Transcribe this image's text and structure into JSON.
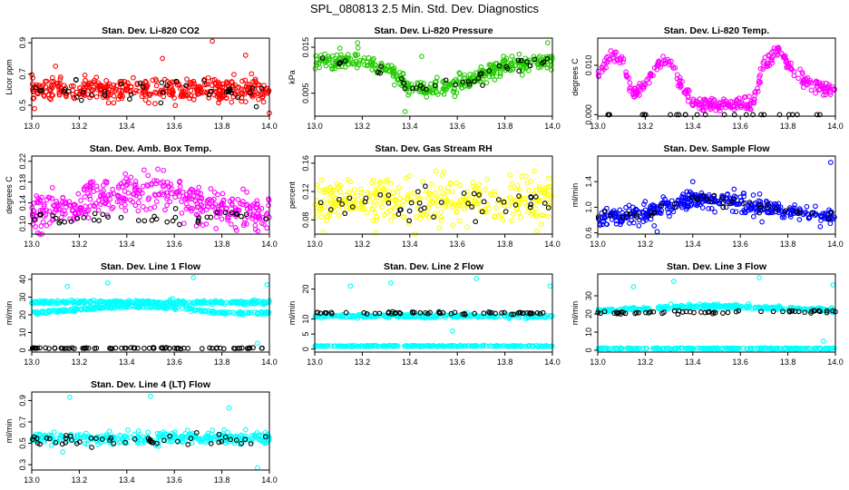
{
  "title": "SPL_080813  2.5 Min. Std. Dev. Diagnostics",
  "colors": {
    "red": "#ff0000",
    "green": "#22cc00",
    "magenta": "#ff00ff",
    "yellow": "#ffff00",
    "blue": "#0000ff",
    "cyan": "#00ffff",
    "black": "#000000"
  },
  "chart_data": [
    {
      "type": "scatter",
      "title": "Stan. Dev. Li-820 CO2",
      "ylabel": "Licor ppm",
      "xlim": [
        13.0,
        14.0
      ],
      "ylim": [
        0.43,
        0.93
      ],
      "xticks": [
        "13.0",
        "13.2",
        "13.4",
        "13.6",
        "13.8",
        "14.0"
      ],
      "yticks": [
        {
          "v": 0.5,
          "label": "0.5"
        },
        {
          "v": 0.7,
          "label": "0.7"
        },
        {
          "v": 0.9,
          "label": "0.9"
        }
      ],
      "series": [
        {
          "color": "red",
          "baseline": [
            [
              13.0,
              0.6
            ],
            [
              14.0,
              0.6
            ]
          ],
          "spread": 0.05,
          "n": 400
        },
        {
          "color": "black",
          "baseline": [
            [
              13.0,
              0.58
            ],
            [
              14.0,
              0.58
            ]
          ],
          "spread": 0.05,
          "n": 40
        }
      ],
      "outliers": [
        [
          13.76,
          0.91
        ],
        [
          13.1,
          0.75
        ],
        [
          13.9,
          0.82
        ],
        [
          13.55,
          0.8
        ],
        [
          14.0,
          0.45
        ]
      ]
    },
    {
      "type": "scatter",
      "title": "Stan. Dev. Li-820 Pressure",
      "ylabel": "kPa",
      "xlim": [
        13.0,
        14.0
      ],
      "ylim": [
        0.0,
        0.017
      ],
      "xticks": [
        "13.0",
        "13.2",
        "13.4",
        "13.6",
        "13.8",
        "14.0"
      ],
      "yticks": [
        {
          "v": 0.005,
          "label": "0.005"
        },
        {
          "v": 0.015,
          "label": "0.015"
        }
      ],
      "series": [
        {
          "color": "green",
          "baseline": [
            [
              13.0,
              0.012
            ],
            [
              13.2,
              0.012
            ],
            [
              13.3,
              0.01
            ],
            [
              13.4,
              0.006
            ],
            [
              13.5,
              0.006
            ],
            [
              13.6,
              0.007
            ],
            [
              13.7,
              0.009
            ],
            [
              13.8,
              0.011
            ],
            [
              14.0,
              0.012
            ]
          ],
          "spread": 0.0013,
          "n": 400
        },
        {
          "color": "black",
          "baseline": [
            [
              13.0,
              0.012
            ],
            [
              13.2,
              0.012
            ],
            [
              13.3,
              0.01
            ],
            [
              13.4,
              0.006
            ],
            [
              13.5,
              0.006
            ],
            [
              13.6,
              0.007
            ],
            [
              13.7,
              0.009
            ],
            [
              13.8,
              0.011
            ],
            [
              14.0,
              0.012
            ]
          ],
          "spread": 0.0012,
          "n": 40
        }
      ],
      "outliers": [
        [
          13.18,
          0.016
        ],
        [
          13.98,
          0.016
        ],
        [
          13.45,
          0.013
        ],
        [
          13.38,
          0.001
        ]
      ]
    },
    {
      "type": "scatter",
      "title": "Stan. Dev. Li-820 Temp.",
      "ylabel": "degrees C",
      "xlim": [
        13.0,
        14.0
      ],
      "ylim": [
        -0.0003,
        0.0155
      ],
      "xticks": [
        "13.0",
        "13.2",
        "13.4",
        "13.6",
        "13.8",
        "14.0"
      ],
      "yticks": [
        {
          "v": 0.0,
          "label": "0.000"
        },
        {
          "v": 0.01,
          "label": "0.010"
        }
      ],
      "series": [
        {
          "color": "magenta",
          "baseline": [
            [
              13.0,
              0.008
            ],
            [
              13.05,
              0.012
            ],
            [
              13.1,
              0.011
            ],
            [
              13.15,
              0.004
            ],
            [
              13.2,
              0.006
            ],
            [
              13.25,
              0.01
            ],
            [
              13.3,
              0.011
            ],
            [
              13.35,
              0.006
            ],
            [
              13.4,
              0.002
            ],
            [
              13.5,
              0.002
            ],
            [
              13.6,
              0.002
            ],
            [
              13.65,
              0.002
            ],
            [
              13.7,
              0.01
            ],
            [
              13.75,
              0.013
            ],
            [
              13.8,
              0.01
            ],
            [
              13.85,
              0.008
            ],
            [
              13.9,
              0.006
            ],
            [
              14.0,
              0.005
            ]
          ],
          "spread": 0.001,
          "n": 350
        },
        {
          "color": "black",
          "baseline": [
            [
              13.4,
              0.0
            ],
            [
              13.65,
              0.0
            ]
          ],
          "spread": 0.0,
          "n": 25
        }
      ],
      "outliers": []
    },
    {
      "type": "scatter",
      "title": "Stan. Dev. Amb. Box Temp.",
      "ylabel": "degrees C",
      "xlim": [
        13.0,
        14.0
      ],
      "ylim": [
        0.08,
        0.23
      ],
      "xticks": [
        "13.0",
        "13.2",
        "13.4",
        "13.6",
        "13.8",
        "14.0"
      ],
      "yticks": [
        {
          "v": 0.1,
          "label": "0.10"
        },
        {
          "v": 0.14,
          "label": "0.14"
        },
        {
          "v": 0.18,
          "label": "0.18"
        },
        {
          "v": 0.22,
          "label": "0.22"
        }
      ],
      "series": [
        {
          "color": "magenta",
          "baseline": [
            [
              13.0,
              0.12
            ],
            [
              13.3,
              0.15
            ],
            [
              13.55,
              0.17
            ],
            [
              13.7,
              0.14
            ],
            [
              14.0,
              0.11
            ]
          ],
          "spread": 0.025,
          "n": 400
        },
        {
          "color": "black",
          "baseline": [
            [
              13.0,
              0.11
            ],
            [
              14.0,
              0.11
            ]
          ],
          "spread": 0.01,
          "n": 40
        }
      ],
      "outliers": []
    },
    {
      "type": "scatter",
      "title": "Stan. Dev. Gas Stream RH",
      "ylabel": "percent",
      "xlim": [
        13.0,
        14.0
      ],
      "ylim": [
        0.06,
        0.17
      ],
      "xticks": [
        "13.0",
        "13.2",
        "13.4",
        "13.6",
        "13.8",
        "14.0"
      ],
      "yticks": [
        {
          "v": 0.08,
          "label": "0.08"
        },
        {
          "v": 0.12,
          "label": "0.12"
        },
        {
          "v": 0.16,
          "label": "0.16"
        }
      ],
      "series": [
        {
          "color": "yellow",
          "baseline": [
            [
              13.0,
              0.105
            ],
            [
              14.0,
              0.105
            ]
          ],
          "spread": 0.025,
          "n": 350
        },
        {
          "color": "black",
          "baseline": [
            [
              13.0,
              0.1
            ],
            [
              14.0,
              0.1
            ]
          ],
          "spread": 0.015,
          "n": 45
        }
      ],
      "outliers": []
    },
    {
      "type": "scatter",
      "title": "Stan. Dev. Sample Flow",
      "ylabel": "ml/min",
      "xlim": [
        13.0,
        14.0
      ],
      "ylim": [
        0.58,
        1.8
      ],
      "xticks": [
        "13.0",
        "13.2",
        "13.4",
        "13.6",
        "13.8",
        "14.0"
      ],
      "yticks": [
        {
          "v": 0.6,
          "label": "0.6"
        },
        {
          "v": 1.0,
          "label": "1.0"
        },
        {
          "v": 1.4,
          "label": "1.4"
        }
      ],
      "series": [
        {
          "color": "blue",
          "baseline": [
            [
              13.0,
              0.85
            ],
            [
              13.2,
              0.9
            ],
            [
              13.4,
              1.15
            ],
            [
              13.6,
              1.05
            ],
            [
              13.8,
              0.95
            ],
            [
              14.0,
              0.85
            ]
          ],
          "spread": 0.1,
          "n": 400
        },
        {
          "color": "black",
          "baseline": [
            [
              13.0,
              0.85
            ],
            [
              13.2,
              0.9
            ],
            [
              13.4,
              1.15
            ],
            [
              13.6,
              1.05
            ],
            [
              13.8,
              0.95
            ],
            [
              14.0,
              0.85
            ]
          ],
          "spread": 0.06,
          "n": 40
        }
      ],
      "outliers": [
        [
          13.98,
          1.7
        ],
        [
          13.4,
          1.4
        ],
        [
          13.25,
          0.62
        ]
      ]
    },
    {
      "type": "scatter",
      "title": "Stan. Dev. Line 1 Flow",
      "ylabel": "ml/min",
      "xlim": [
        13.0,
        14.0
      ],
      "ylim": [
        -1,
        43
      ],
      "xticks": [
        "13.0",
        "13.2",
        "13.4",
        "13.6",
        "13.8",
        "14.0"
      ],
      "yticks": [
        {
          "v": 0,
          "label": "0"
        },
        {
          "v": 10,
          "label": "10"
        },
        {
          "v": 20,
          "label": "20"
        },
        {
          "v": 30,
          "label": "30"
        },
        {
          "v": 40,
          "label": "40"
        }
      ],
      "series": [
        {
          "color": "cyan",
          "baseline": [
            [
              13.0,
              27
            ],
            [
              14.0,
              27
            ]
          ],
          "spread": 0.8,
          "n": 300
        },
        {
          "color": "cyan",
          "baseline": [
            [
              13.0,
              21
            ],
            [
              13.4,
              25
            ],
            [
              13.6,
              24
            ],
            [
              13.8,
              21
            ],
            [
              14.0,
              21
            ]
          ],
          "spread": 0.6,
          "n": 250
        },
        {
          "color": "black",
          "baseline": [
            [
              13.0,
              1.2
            ],
            [
              14.0,
              1.2
            ]
          ],
          "spread": 0.2,
          "n": 80
        }
      ],
      "outliers": [
        [
          13.15,
          36
        ],
        [
          13.32,
          38
        ],
        [
          13.68,
          41
        ],
        [
          13.99,
          37
        ],
        [
          13.95,
          4
        ]
      ]
    },
    {
      "type": "scatter",
      "title": "Stan. Dev. Line 2 Flow",
      "ylabel": "ml/min",
      "xlim": [
        13.0,
        14.0
      ],
      "ylim": [
        -1,
        25
      ],
      "xticks": [
        "13.0",
        "13.2",
        "13.4",
        "13.6",
        "13.8",
        "14.0"
      ],
      "yticks": [
        {
          "v": 0,
          "label": "0"
        },
        {
          "v": 5,
          "label": "5"
        },
        {
          "v": 10,
          "label": "10"
        },
        {
          "v": 20,
          "label": "20"
        }
      ],
      "series": [
        {
          "color": "cyan",
          "baseline": [
            [
              13.0,
              11
            ],
            [
              14.0,
              11
            ]
          ],
          "spread": 0.4,
          "n": 300
        },
        {
          "color": "cyan",
          "baseline": [
            [
              13.0,
              1
            ],
            [
              14.0,
              1
            ]
          ],
          "spread": 0.15,
          "n": 250
        },
        {
          "color": "black",
          "baseline": [
            [
              13.0,
              12
            ],
            [
              14.0,
              12
            ]
          ],
          "spread": 0.3,
          "n": 60
        }
      ],
      "outliers": [
        [
          13.15,
          21
        ],
        [
          13.32,
          22
        ],
        [
          13.68,
          23.5
        ],
        [
          13.99,
          21
        ],
        [
          13.58,
          6
        ]
      ]
    },
    {
      "type": "scatter",
      "title": "Stan. Dev. Line 3 Flow",
      "ylabel": "ml/min",
      "xlim": [
        13.0,
        14.0
      ],
      "ylim": [
        -1,
        42
      ],
      "xticks": [
        "13.0",
        "13.2",
        "13.4",
        "13.6",
        "13.8",
        "14.0"
      ],
      "yticks": [
        {
          "v": 0,
          "label": "0"
        },
        {
          "v": 10,
          "label": "10"
        },
        {
          "v": 20,
          "label": "20"
        },
        {
          "v": 30,
          "label": "30"
        }
      ],
      "series": [
        {
          "color": "cyan",
          "baseline": [
            [
              13.0,
              22
            ],
            [
              13.4,
              24
            ],
            [
              13.6,
              24
            ],
            [
              14.0,
              22
            ]
          ],
          "spread": 0.8,
          "n": 300
        },
        {
          "color": "cyan",
          "baseline": [
            [
              13.0,
              1
            ],
            [
              14.0,
              1
            ]
          ],
          "spread": 0.2,
          "n": 250
        },
        {
          "color": "black",
          "baseline": [
            [
              13.0,
              20.5
            ],
            [
              14.0,
              21.5
            ]
          ],
          "spread": 0.5,
          "n": 60
        }
      ],
      "outliers": [
        [
          13.15,
          35
        ],
        [
          13.32,
          38
        ],
        [
          13.68,
          40
        ],
        [
          13.99,
          36
        ],
        [
          13.95,
          5
        ]
      ]
    },
    {
      "type": "scatter",
      "title": "Stan. Dev. Line 4 (LT) Flow",
      "ylabel": "ml/min",
      "xlim": [
        13.0,
        14.0
      ],
      "ylim": [
        0.25,
        0.98
      ],
      "xticks": [
        "13.0",
        "13.2",
        "13.4",
        "13.6",
        "13.8",
        "14.0"
      ],
      "yticks": [
        {
          "v": 0.3,
          "label": "0.3"
        },
        {
          "v": 0.5,
          "label": "0.5"
        },
        {
          "v": 0.7,
          "label": "0.7"
        },
        {
          "v": 0.9,
          "label": "0.9"
        }
      ],
      "series": [
        {
          "color": "cyan",
          "baseline": [
            [
              13.0,
              0.55
            ],
            [
              14.0,
              0.55
            ]
          ],
          "spread": 0.04,
          "n": 300
        },
        {
          "color": "black",
          "baseline": [
            [
              13.0,
              0.53
            ],
            [
              14.0,
              0.53
            ]
          ],
          "spread": 0.04,
          "n": 50
        }
      ],
      "outliers": [
        [
          13.16,
          0.93
        ],
        [
          13.5,
          0.94
        ],
        [
          13.83,
          0.83
        ],
        [
          13.95,
          0.27
        ],
        [
          13.13,
          0.42
        ]
      ]
    }
  ]
}
